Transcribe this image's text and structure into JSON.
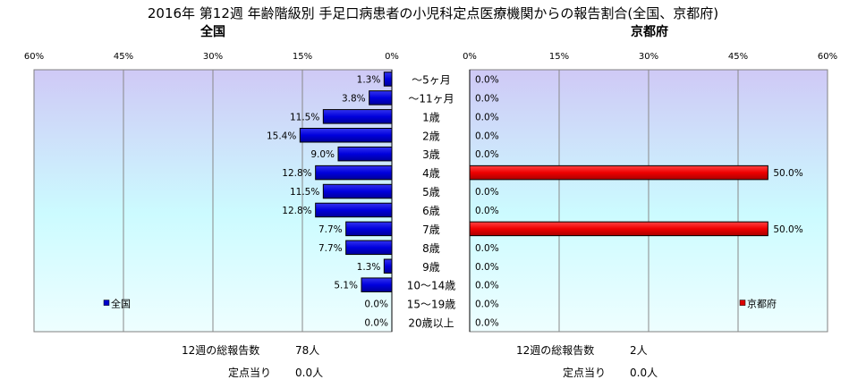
{
  "title": "2016年 第12週 年齢階級別 手足口病患者の小児科定点医療機関からの報告割合(全国、京都府)",
  "chart_data": {
    "type": "bar",
    "orientation": "horizontal",
    "categories": [
      "～5ヶ月",
      "～11ヶ月",
      "1歳",
      "2歳",
      "3歳",
      "4歳",
      "5歳",
      "6歳",
      "7歳",
      "8歳",
      "9歳",
      "10～14歳",
      "15～19歳",
      "20歳以上"
    ],
    "panels": [
      {
        "name": "全国",
        "direction": "reversed",
        "xlim": [
          0,
          60
        ],
        "ticks": [
          "60%",
          "45%",
          "30%",
          "15%",
          "0%"
        ],
        "series": [
          {
            "name": "全国",
            "values": [
              1.3,
              3.8,
              11.5,
              15.4,
              9.0,
              12.8,
              11.5,
              12.8,
              7.7,
              7.7,
              1.3,
              5.1,
              0.0,
              0.0
            ]
          }
        ],
        "data_labels": [
          "1.3%",
          "3.8%",
          "11.5%",
          "15.4%",
          "9.0%",
          "12.8%",
          "11.5%",
          "12.8%",
          "7.7%",
          "7.7%",
          "1.3%",
          "5.1%",
          "0.0%",
          "0.0%"
        ],
        "color": "#0000cc",
        "legend": "bottom-left"
      },
      {
        "name": "京都府",
        "direction": "normal",
        "xlim": [
          0,
          60
        ],
        "ticks": [
          "0%",
          "15%",
          "30%",
          "45%",
          "60%"
        ],
        "series": [
          {
            "name": "京都府",
            "values": [
              0.0,
              0.0,
              0.0,
              0.0,
              0.0,
              50.0,
              0.0,
              0.0,
              50.0,
              0.0,
              0.0,
              0.0,
              0.0,
              0.0
            ]
          }
        ],
        "data_labels": [
          "0.0%",
          "0.0%",
          "0.0%",
          "0.0%",
          "0.0%",
          "50.0%",
          "0.0%",
          "0.0%",
          "50.0%",
          "0.0%",
          "0.0%",
          "0.0%",
          "0.0%",
          "0.0%"
        ],
        "color": "#dd0000",
        "legend": "bottom-right"
      }
    ],
    "grid": true
  },
  "footer": {
    "national": {
      "total_label": "12週の総報告数",
      "total_value": "78人",
      "per_label": "定点当り",
      "per_value": "0.0人"
    },
    "kyoto": {
      "total_label": "12週の総報告数",
      "total_value": "2人",
      "per_label": "定点当り",
      "per_value": "0.0人"
    }
  }
}
